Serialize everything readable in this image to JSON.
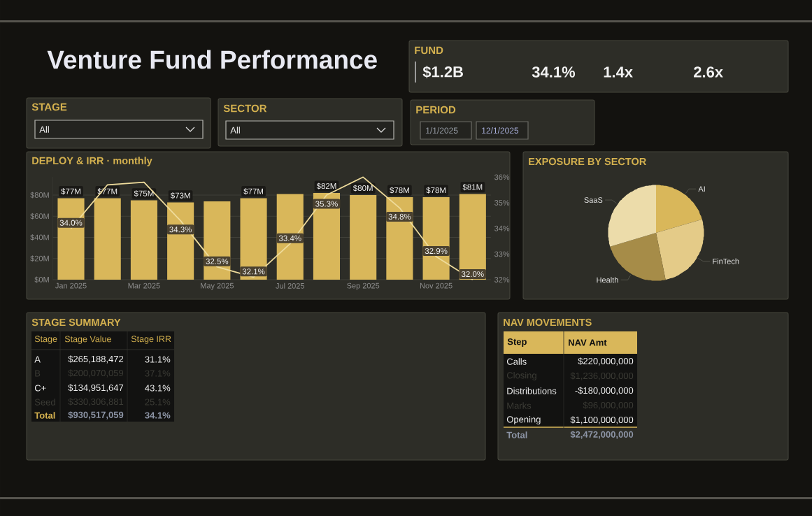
{
  "chart_data": [
    {
      "type": "other",
      "title": "Venture Fund Performance",
      "annotations": [
        "FUND",
        "$1.2B",
        "34.1%",
        "1.4x",
        "2.6x"
      ]
    },
    {
      "type": "other",
      "annotations": [
        "STAGE",
        "All",
        "SECTOR",
        "All",
        "PERIOD",
        "1/1/2025",
        "12/1/2025"
      ]
    },
    {
      "type": "bar",
      "title": "DEPLOY & IRR · monthly",
      "categories": [
        "Jan 2025",
        null,
        "Mar 2025",
        null,
        "May 2025",
        null,
        "Jul 2025",
        null,
        "Sep 2025",
        null,
        "Nov 2025",
        null
      ],
      "ylim": [
        0,
        97
      ],
      "yticks": [
        {
          "value": 0,
          "label": "$0M"
        },
        {
          "value": 20,
          "label": "$20M"
        },
        {
          "value": 40,
          "label": "$40M"
        },
        {
          "value": 60,
          "label": "$60M"
        },
        {
          "value": 80,
          "label": "$80M"
        }
      ],
      "y2lim": [
        32,
        36
      ],
      "y2ticks": [
        {
          "value": 32,
          "label": "32%"
        },
        {
          "value": 33,
          "label": "33%"
        },
        {
          "value": 34,
          "label": "34%"
        },
        {
          "value": 35,
          "label": "35%"
        },
        {
          "value": 36,
          "label": "36%"
        }
      ],
      "grid": "y",
      "series": [
        {
          "type": "bar",
          "color": "#d9b75a",
          "values": [
            77,
            77,
            75,
            73,
            74,
            77,
            81,
            82,
            80,
            78,
            78,
            81
          ],
          "value_labels": [
            "$77M",
            "$77M",
            "$75M",
            "$73M",
            null,
            "$77M",
            null,
            "$82M",
            "$80M",
            "$78M",
            "$78M",
            "$81M"
          ]
        },
        {
          "type": "line",
          "axis": "y2",
          "color": "#efdc9c",
          "values": [
            34.0,
            35.7,
            35.8,
            34.3,
            32.5,
            32.1,
            33.4,
            35.3,
            36.0,
            34.8,
            32.9,
            32.0
          ],
          "value_labels": [
            "34.0%",
            null,
            null,
            "34.3%",
            "32.5%",
            "32.1%",
            "33.4%",
            "35.3%",
            null,
            "34.8%",
            "32.9%",
            "32.0%"
          ]
        }
      ]
    },
    {
      "type": "pie",
      "title": "EXPOSURE BY SECTOR",
      "categories": [
        "AI",
        "FinTech",
        "Health",
        "SaaS"
      ],
      "values": [
        20.5,
        26.3,
        23.6,
        29.6
      ],
      "colors": [
        "#d9b75a",
        "#e4cb88",
        "#a68c48",
        "#ecdcaa"
      ]
    },
    {
      "type": "other",
      "title": "STAGE SUMMARY",
      "categories": [
        "Stage",
        "Stage Value",
        "Stage IRR"
      ],
      "annotations": [
        "A",
        "$265,188,472",
        "31.1%",
        "B",
        "$200,070,059",
        "37.1%",
        "C+",
        "$134,951,647",
        "43.1%",
        "Seed",
        "$330,306,881",
        "25.1%",
        "Total",
        "$930,517,059",
        "34.1%"
      ]
    },
    {
      "type": "other",
      "title": "NAV MOVEMENTS",
      "categories": [
        "Step",
        "NAV Amt"
      ],
      "annotations": [
        "Calls",
        "$220,000,000",
        "Closing",
        "$1,236,000,000",
        "Distributions",
        "-$180,000,000",
        "Marks",
        "$96,000,000",
        "Opening",
        "$1,100,000,000",
        "Total",
        "$2,472,000,000"
      ]
    }
  ]
}
